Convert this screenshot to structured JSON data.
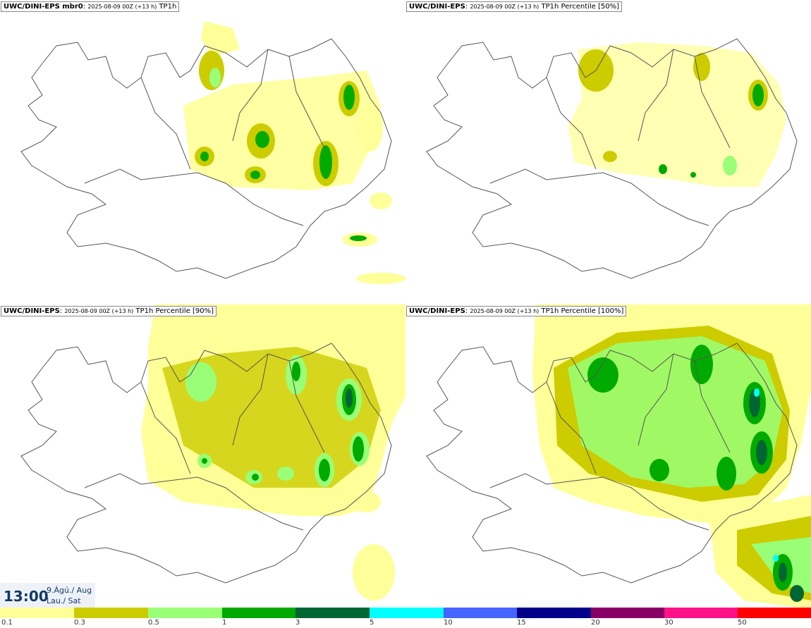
{
  "panels": [
    {
      "model": "UWC/DINI-EPS mbr0",
      "run": "2025-08-09 00Z (+13 h)",
      "product": "TP1h"
    },
    {
      "model": "UWC/DINI-EPS",
      "run": "2025-08-09 00Z (+13 h)",
      "product": "TP1h Percentile [50%]"
    },
    {
      "model": "UWC/DINI-EPS",
      "run": "2025-08-09 00Z (+13 h)",
      "product": "TP1h Percentile [90%]"
    },
    {
      "model": "UWC/DINI-EPS",
      "run": "2025-08-09 00Z (+13 h)",
      "product": "TP1h Percentile [100%]"
    }
  ],
  "time": {
    "hour": "13:00",
    "date": "9.Ágú./ Aug",
    "day": "Lau./ Sat"
  },
  "legend": {
    "labels": [
      "0.1",
      "0.3",
      "0.5",
      "1",
      "3",
      "5",
      "10",
      "15",
      "20",
      "30",
      "50"
    ],
    "colors": [
      "#ffff99",
      "#cccc00",
      "#99ff77",
      "#00aa00",
      "#006633",
      "#00ffff",
      "#4466ff",
      "#000088",
      "#880066",
      "#ff1188",
      "#ff0000"
    ]
  }
}
